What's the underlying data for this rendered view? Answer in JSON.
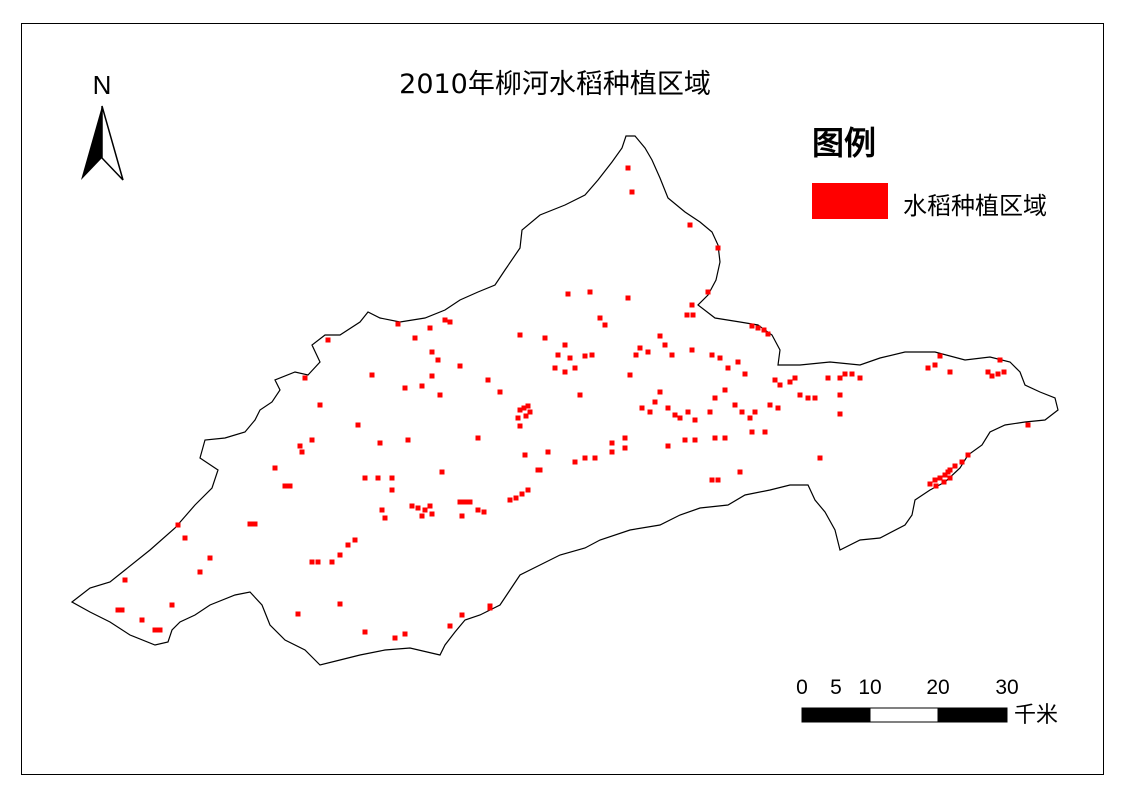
{
  "map": {
    "title": "2010年柳河水稻种植区域",
    "north_label": "N",
    "legend": {
      "title": "图例",
      "items": [
        {
          "label": "水稻种植区域",
          "color": "#FF0000"
        }
      ]
    },
    "scale_bar": {
      "tick_labels": [
        "0",
        "5",
        "10",
        "20",
        "30"
      ],
      "unit": "千米"
    },
    "colors": {
      "paddy": "#FF0000",
      "boundary": "#000000",
      "background": "#FFFFFF"
    }
  }
}
